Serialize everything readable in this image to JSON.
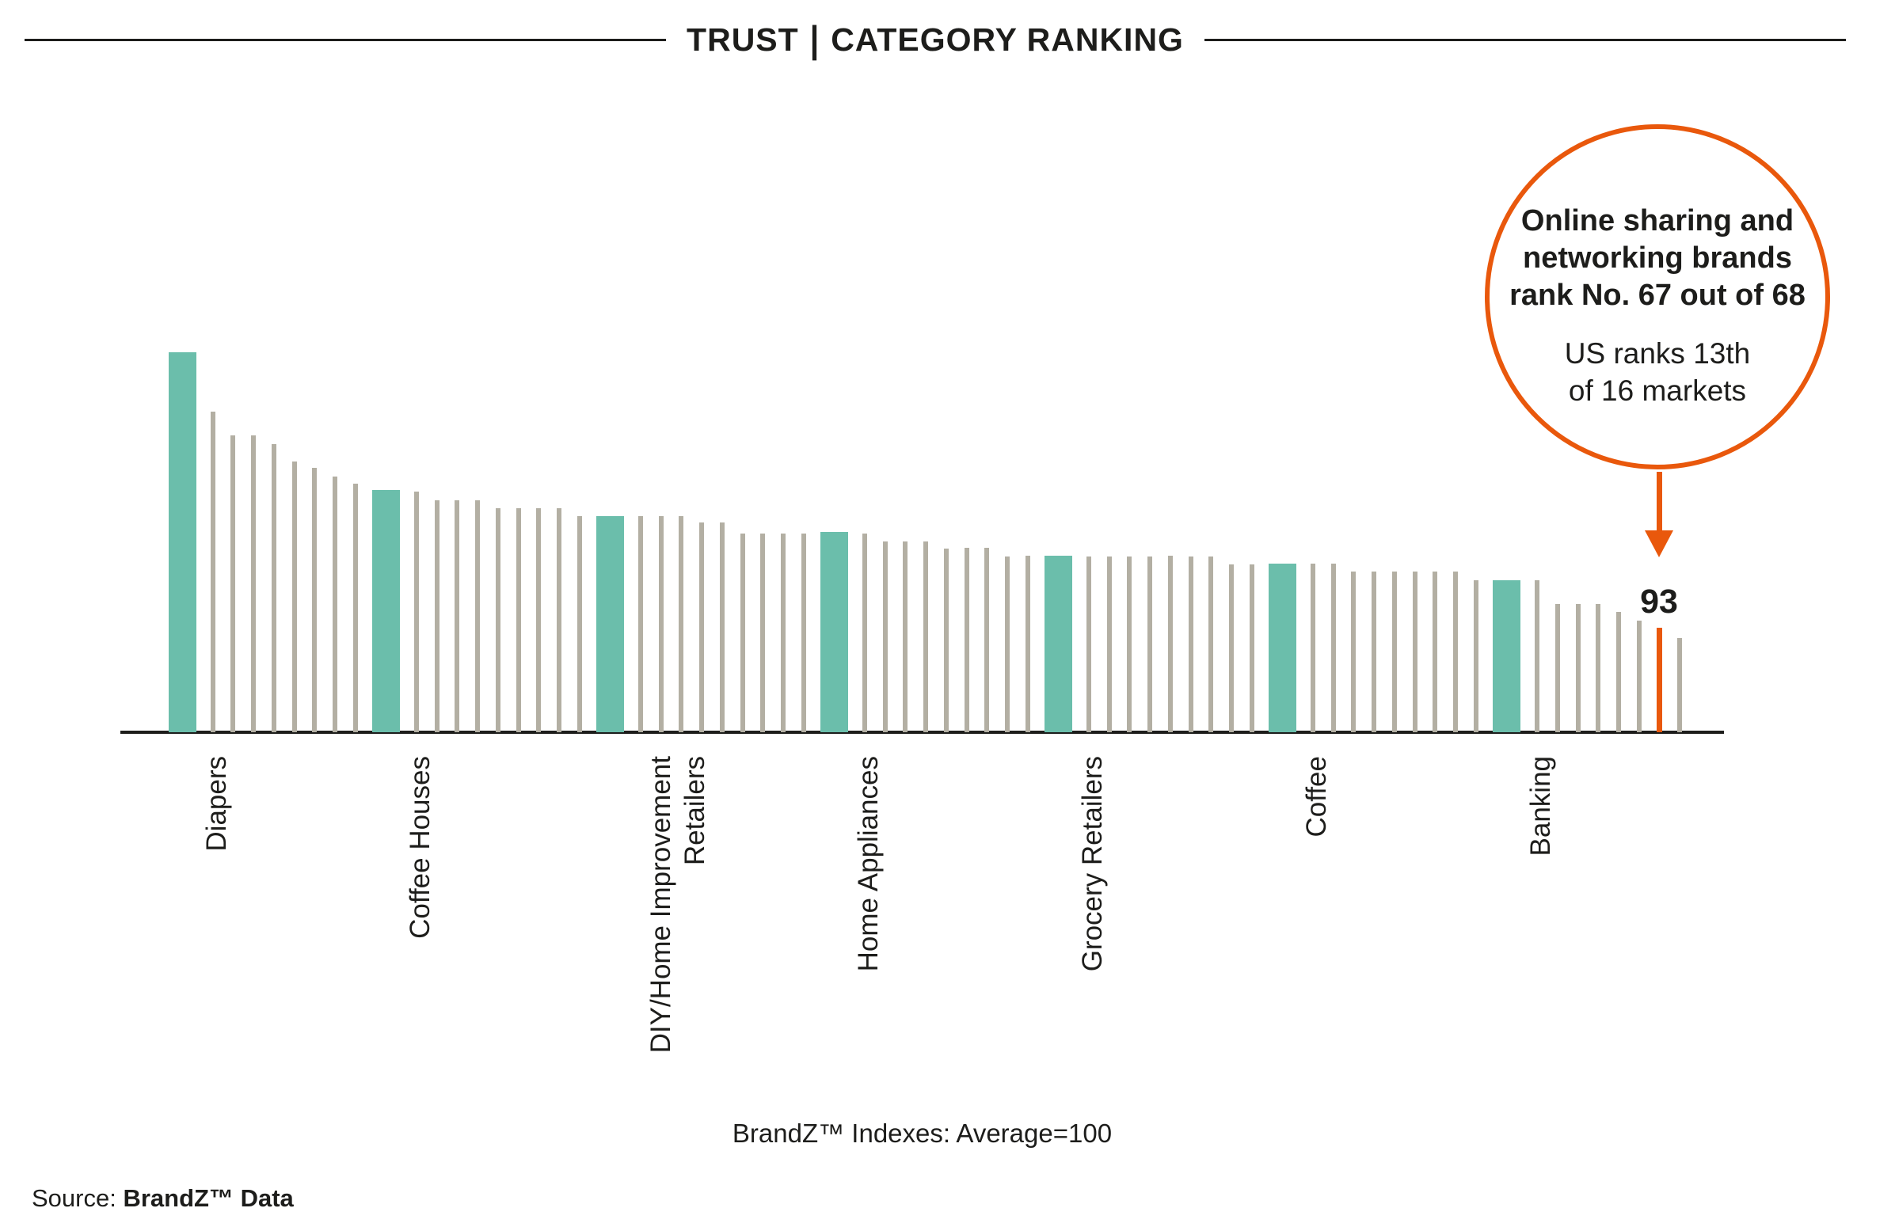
{
  "header": {
    "title_left": "TRUST",
    "separator": "|",
    "title_right": "CATEGORY RANKING"
  },
  "annotation": {
    "bold_text": "Online sharing and\nnetworking brands\nrank No. 67 out of 68",
    "regular_text": "US ranks 13th\nof 16 markets",
    "circle_color": "#e9580c"
  },
  "chart_data": {
    "type": "bar",
    "title": "TRUST | CATEGORY RANKING",
    "xlabel": "",
    "ylabel": "",
    "note": "BrandZ™ Indexes: Average=100",
    "grid": false,
    "legend": false,
    "axis_baseline_value": 85,
    "average_value": 100,
    "total_categories": 68,
    "colors": {
      "highlighted_bar": "#6bbeab",
      "default_bar": "#b3afa3",
      "callout_bar": "#e9580c",
      "axis": "#1d1d1b"
    },
    "labeled_point": {
      "rank": 67,
      "value": 93,
      "label": "93"
    },
    "bars": [
      {
        "value": 114.0,
        "type": "teal",
        "category": "Diapers"
      },
      {
        "value": 109.5,
        "type": "gray"
      },
      {
        "value": 107.7,
        "type": "gray"
      },
      {
        "value": 107.7,
        "type": "gray"
      },
      {
        "value": 107.0,
        "type": "gray"
      },
      {
        "value": 105.7,
        "type": "gray"
      },
      {
        "value": 105.2,
        "type": "gray"
      },
      {
        "value": 104.5,
        "type": "gray"
      },
      {
        "value": 104.0,
        "type": "gray"
      },
      {
        "value": 103.5,
        "type": "teal",
        "category": "Coffee Houses"
      },
      {
        "value": 103.4,
        "type": "gray"
      },
      {
        "value": 102.7,
        "type": "gray"
      },
      {
        "value": 102.7,
        "type": "gray"
      },
      {
        "value": 102.7,
        "type": "gray"
      },
      {
        "value": 102.1,
        "type": "gray"
      },
      {
        "value": 102.1,
        "type": "gray"
      },
      {
        "value": 102.1,
        "type": "gray"
      },
      {
        "value": 102.1,
        "type": "gray"
      },
      {
        "value": 101.5,
        "type": "gray"
      },
      {
        "value": 101.5,
        "type": "teal",
        "category": "DIY/Home Improvement\nRetailers"
      },
      {
        "value": 101.5,
        "type": "gray"
      },
      {
        "value": 101.5,
        "type": "gray"
      },
      {
        "value": 101.5,
        "type": "gray"
      },
      {
        "value": 101.0,
        "type": "gray"
      },
      {
        "value": 101.0,
        "type": "gray"
      },
      {
        "value": 100.2,
        "type": "gray"
      },
      {
        "value": 100.2,
        "type": "gray"
      },
      {
        "value": 100.2,
        "type": "gray"
      },
      {
        "value": 100.2,
        "type": "gray"
      },
      {
        "value": 100.3,
        "type": "teal",
        "category": "Home Appliances"
      },
      {
        "value": 100.2,
        "type": "gray"
      },
      {
        "value": 99.6,
        "type": "gray"
      },
      {
        "value": 99.6,
        "type": "gray"
      },
      {
        "value": 99.6,
        "type": "gray"
      },
      {
        "value": 99.0,
        "type": "gray"
      },
      {
        "value": 99.1,
        "type": "gray"
      },
      {
        "value": 99.1,
        "type": "gray"
      },
      {
        "value": 98.4,
        "type": "gray"
      },
      {
        "value": 98.5,
        "type": "gray"
      },
      {
        "value": 98.5,
        "type": "teal",
        "category": "Grocery Retailers"
      },
      {
        "value": 98.4,
        "type": "gray"
      },
      {
        "value": 98.4,
        "type": "gray"
      },
      {
        "value": 98.4,
        "type": "gray"
      },
      {
        "value": 98.4,
        "type": "gray"
      },
      {
        "value": 98.5,
        "type": "gray"
      },
      {
        "value": 98.4,
        "type": "gray"
      },
      {
        "value": 98.4,
        "type": "gray"
      },
      {
        "value": 97.8,
        "type": "gray"
      },
      {
        "value": 97.8,
        "type": "gray"
      },
      {
        "value": 97.9,
        "type": "teal",
        "category": "Coffee"
      },
      {
        "value": 97.9,
        "type": "gray"
      },
      {
        "value": 97.9,
        "type": "gray"
      },
      {
        "value": 97.3,
        "type": "gray"
      },
      {
        "value": 97.3,
        "type": "gray"
      },
      {
        "value": 97.3,
        "type": "gray"
      },
      {
        "value": 97.3,
        "type": "gray"
      },
      {
        "value": 97.3,
        "type": "gray"
      },
      {
        "value": 97.3,
        "type": "gray"
      },
      {
        "value": 96.6,
        "type": "gray"
      },
      {
        "value": 96.6,
        "type": "teal",
        "category": "Banking"
      },
      {
        "value": 96.6,
        "type": "gray"
      },
      {
        "value": 94.8,
        "type": "gray"
      },
      {
        "value": 94.8,
        "type": "gray"
      },
      {
        "value": 94.8,
        "type": "gray"
      },
      {
        "value": 94.2,
        "type": "gray"
      },
      {
        "value": 93.5,
        "type": "gray"
      },
      {
        "value": 93.0,
        "type": "orange",
        "category": "Online sharing and networking brands",
        "data_label": "93"
      },
      {
        "value": 92.2,
        "type": "gray"
      }
    ]
  },
  "footer": {
    "note": "BrandZ™ Indexes: Average=100",
    "source_prefix": "Source: ",
    "source_bold": "BrandZ™ Data"
  }
}
